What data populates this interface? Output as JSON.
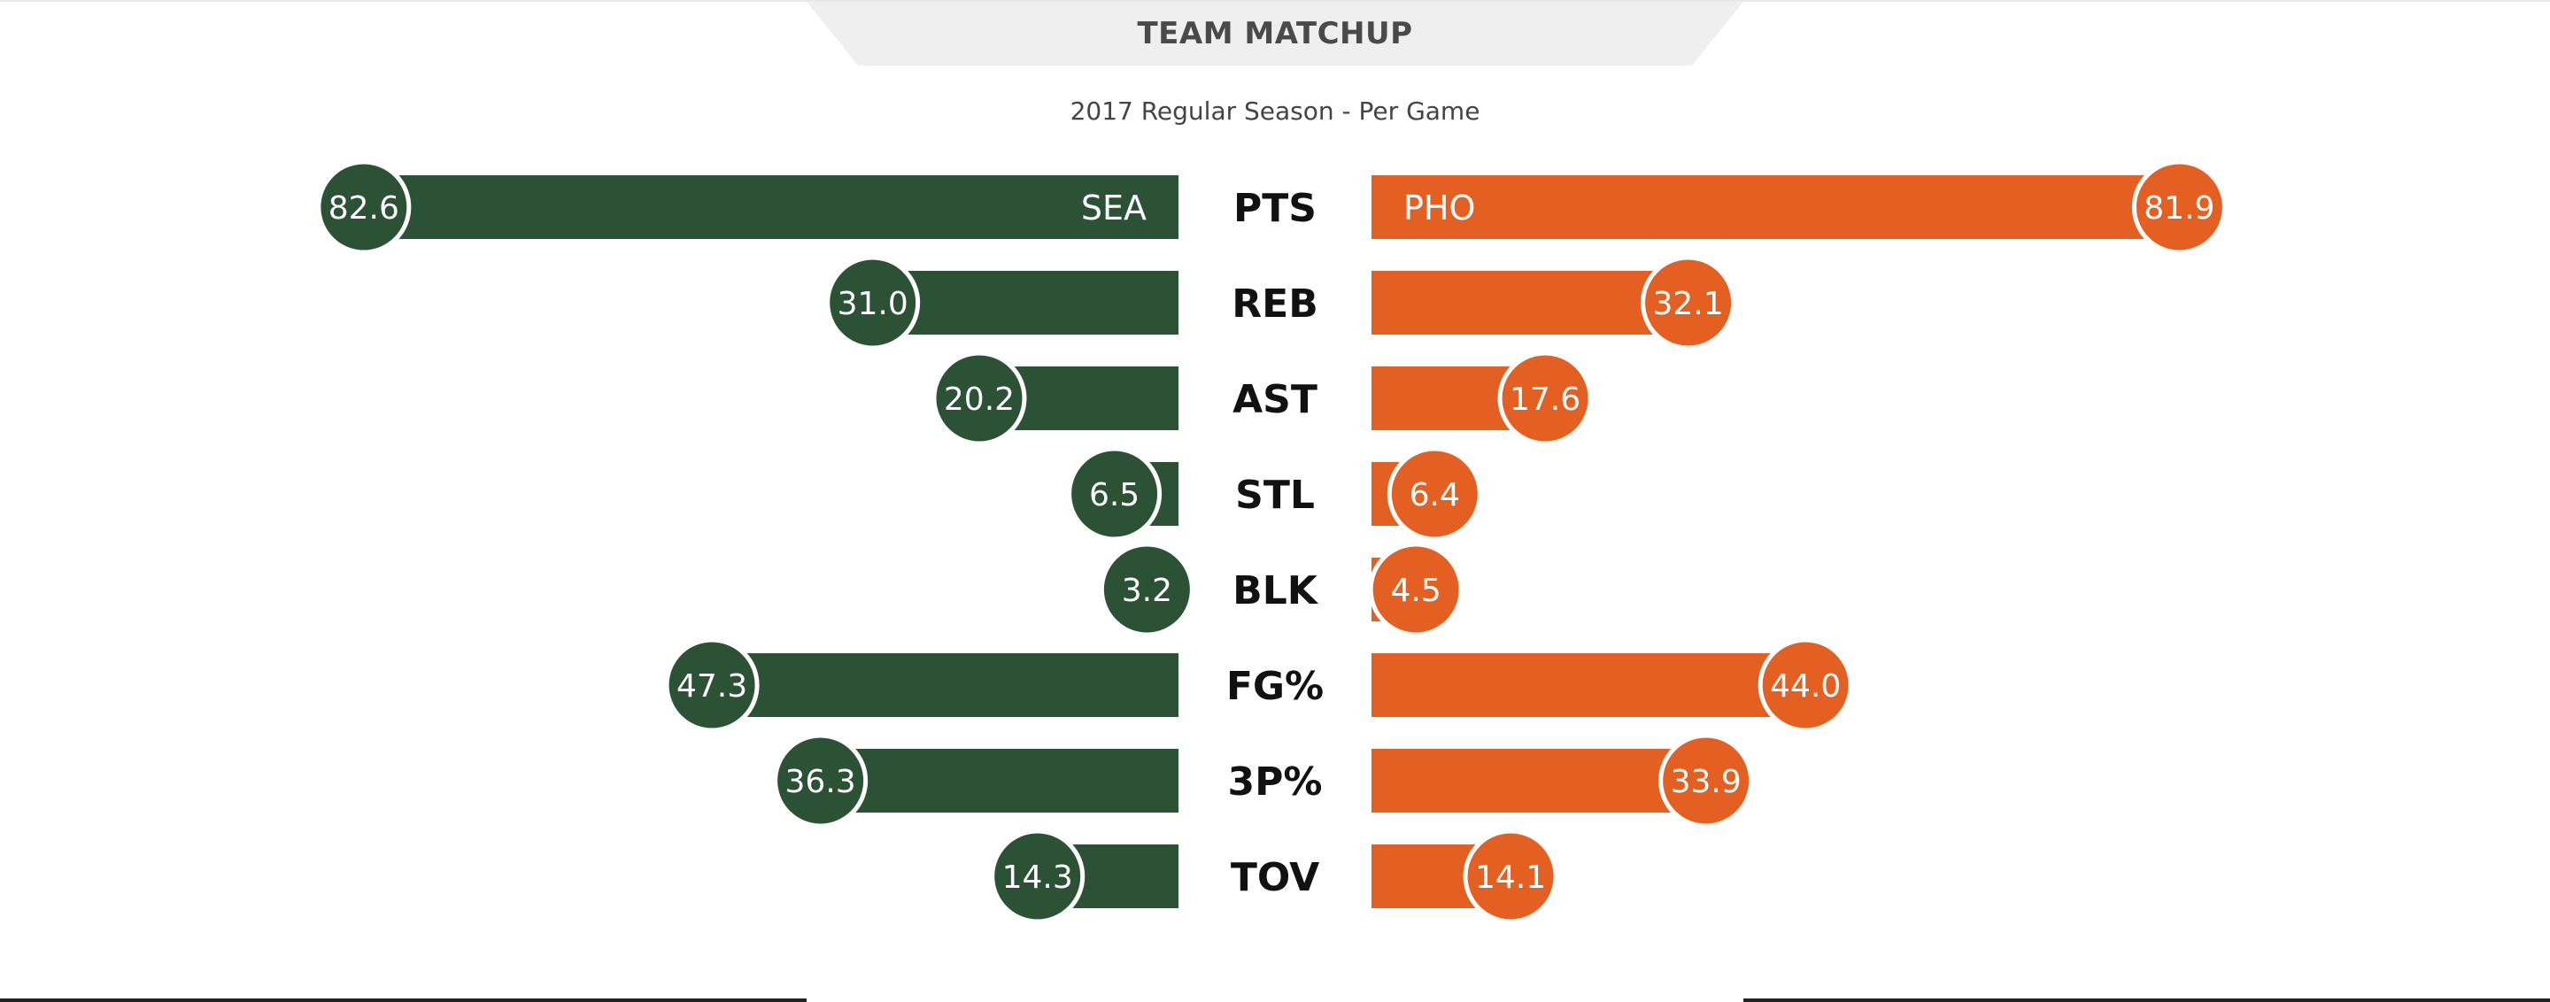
{
  "header": {
    "title": "TEAM MATCHUP",
    "subtitle": "2017 Regular Season - Per Game"
  },
  "colors": {
    "left_team": "#2c5236",
    "right_team": "#e46022",
    "stat_label": "#111111",
    "value_text": "#ffffff"
  },
  "chart_data": {
    "type": "bar",
    "orientation": "horizontal-diverging",
    "title": "TEAM MATCHUP",
    "subtitle": "2017 Regular Season - Per Game",
    "categories": [
      "PTS",
      "REB",
      "AST",
      "STL",
      "BLK",
      "FG%",
      "3P%",
      "TOV"
    ],
    "series": [
      {
        "name": "SEA",
        "side": "left",
        "color": "#2c5236",
        "values": [
          82.6,
          31.0,
          20.2,
          6.5,
          3.2,
          47.3,
          36.3,
          14.3
        ],
        "labels": [
          "82.6",
          "31.0",
          "20.2",
          "6.5",
          "3.2",
          "47.3",
          "36.3",
          "14.3"
        ]
      },
      {
        "name": "PHO",
        "side": "right",
        "color": "#e46022",
        "values": [
          81.9,
          32.1,
          17.6,
          6.4,
          4.5,
          44.0,
          33.9,
          14.1
        ],
        "labels": [
          "81.9",
          "32.1",
          "17.6",
          "6.4",
          "4.5",
          "44.0",
          "33.9",
          "14.1"
        ]
      }
    ],
    "xlim": [
      0,
      100
    ],
    "grid": false,
    "legend": "none"
  }
}
